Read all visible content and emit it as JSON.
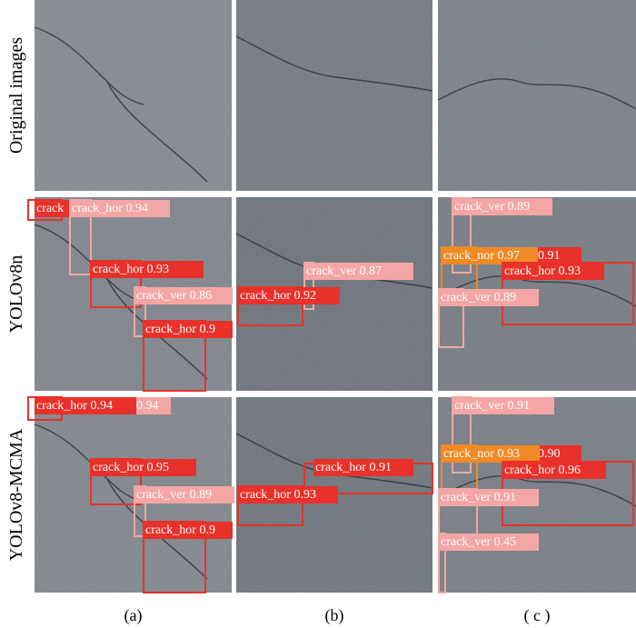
{
  "columns": [
    "(a)",
    "(b)",
    "( c )"
  ],
  "rows": [
    {
      "label": "Original images",
      "panels": [
        {
          "detections": []
        },
        {
          "detections": []
        },
        {
          "detections": []
        }
      ]
    },
    {
      "label": "YOLOv8n",
      "panels": [
        {
          "detections": [
            "crack",
            "crack_hor 0.94",
            "crack_hor 0.93",
            "crack_ver 0.86",
            "crack_hor 0.9"
          ]
        },
        {
          "detections": [
            "crack_ver 0.87",
            "crack_hor 0.92"
          ]
        },
        {
          "detections": [
            "crack_ver 0.89",
            "0.91",
            "crack_nor 0.97",
            "crack_hor 0.93",
            "crack_ver 0.89"
          ]
        }
      ]
    },
    {
      "label": "YOLOv8-MCMA",
      "panels": [
        {
          "detections": [
            "0.94",
            "crack_hor 0.94",
            "crack_hor 0.95",
            "crack_ver 0.89",
            "crack_hor 0.9"
          ]
        },
        {
          "detections": [
            "crack_hor 0.91",
            "crack_hor 0.93"
          ]
        },
        {
          "detections": [
            "crack_ver 0.91",
            "0.90",
            "crack_nor 0.93",
            "crack_hor 0.96",
            "crack_ver 0.91",
            "crack_ver 0.45"
          ]
        }
      ]
    }
  ]
}
